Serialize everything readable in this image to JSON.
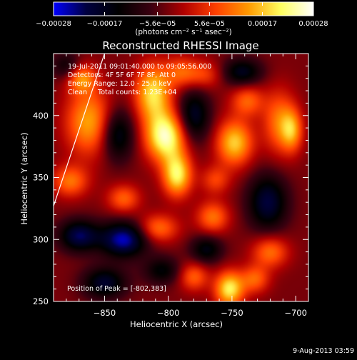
{
  "chart_data": {
    "type": "heatmap",
    "title": "Reconstructed RHESSI Image",
    "xlabel": "Heliocentric X (arcsec)",
    "ylabel": "Heliocentric Y (arcsec)",
    "xlim": [
      -890,
      -690
    ],
    "ylim": [
      250,
      450
    ],
    "x_ticks": [
      -850,
      -800,
      -750,
      -700
    ],
    "x_tick_labels": [
      "−850",
      "−800",
      "−750",
      "−700"
    ],
    "y_ticks": [
      250,
      300,
      350,
      400
    ],
    "y_tick_labels": [
      "250",
      "300",
      "350",
      "400"
    ],
    "colorbar": {
      "min": -0.00028,
      "max": 0.00028,
      "ticks": [
        -0.00028,
        -0.00017,
        -5.6e-05,
        5.6e-05,
        0.00017,
        0.00028
      ],
      "tick_labels": [
        "−0.00028",
        "−0.00017",
        "−5.6e−05",
        "5.6e−05",
        "0.00017",
        "0.00028"
      ],
      "unit_label": "(photons cm⁻² s⁻¹ asec⁻²)",
      "colors": [
        "#0000ff",
        "#000040",
        "#000000",
        "#3a0010",
        "#b00000",
        "#ff4000",
        "#ff9a00",
        "#ffff60",
        "#ffffff"
      ]
    },
    "annotations": [
      "19-Jul-2011 09:01:40.000 to 09:05:56.000",
      "Detectors: 4F 5F 6F 7F 8F, Att 0",
      "Energy Range: 12.0 - 25.0 keV",
      "Clean     Total counts: 1.23E+04"
    ],
    "peak_label": "Position of Peak = [-802,383]",
    "peak": [
      -802,
      383
    ],
    "limb_line": [
      [
        -890,
        327
      ],
      [
        -850,
        450
      ]
    ],
    "blobs": [
      {
        "x": -802,
        "y": 383,
        "v": 1.0,
        "sx": 11,
        "sy": 14
      },
      {
        "x": -793,
        "y": 352,
        "v": 0.85,
        "sx": 8,
        "sy": 12
      },
      {
        "x": -812,
        "y": 418,
        "v": 0.8,
        "sx": 10,
        "sy": 16
      },
      {
        "x": -790,
        "y": 435,
        "v": 0.4,
        "sx": 9,
        "sy": 9
      },
      {
        "x": -862,
        "y": 395,
        "v": 0.65,
        "sx": 13,
        "sy": 19
      },
      {
        "x": -868,
        "y": 430,
        "v": 0.55,
        "sx": 8,
        "sy": 8
      },
      {
        "x": -877,
        "y": 347,
        "v": 0.5,
        "sx": 10,
        "sy": 9
      },
      {
        "x": -835,
        "y": 333,
        "v": 0.45,
        "sx": 9,
        "sy": 8
      },
      {
        "x": -808,
        "y": 309,
        "v": 0.5,
        "sx": 11,
        "sy": 8
      },
      {
        "x": -765,
        "y": 318,
        "v": 0.5,
        "sx": 9,
        "sy": 9
      },
      {
        "x": -763,
        "y": 348,
        "v": 0.35,
        "sx": 8,
        "sy": 8
      },
      {
        "x": -748,
        "y": 378,
        "v": 0.75,
        "sx": 10,
        "sy": 13
      },
      {
        "x": -738,
        "y": 412,
        "v": 0.45,
        "sx": 9,
        "sy": 9
      },
      {
        "x": -713,
        "y": 395,
        "v": 0.5,
        "sx": 9,
        "sy": 18
      },
      {
        "x": -703,
        "y": 388,
        "v": 0.55,
        "sx": 6,
        "sy": 12
      },
      {
        "x": -752,
        "y": 260,
        "v": 0.85,
        "sx": 8,
        "sy": 10
      },
      {
        "x": -780,
        "y": 270,
        "v": 0.45,
        "sx": 8,
        "sy": 8
      },
      {
        "x": -720,
        "y": 290,
        "v": 0.5,
        "sx": 10,
        "sy": 9
      },
      {
        "x": -732,
        "y": 268,
        "v": 0.45,
        "sx": 8,
        "sy": 8
      },
      {
        "x": -772,
        "y": 433,
        "v": 0.35,
        "sx": 10,
        "sy": 8
      },
      {
        "x": -840,
        "y": 385,
        "v": -0.55,
        "sx": 9,
        "sy": 15
      },
      {
        "x": -835,
        "y": 300,
        "v": -0.8,
        "sx": 13,
        "sy": 10
      },
      {
        "x": -870,
        "y": 303,
        "v": -0.65,
        "sx": 11,
        "sy": 9
      },
      {
        "x": -780,
        "y": 400,
        "v": -0.55,
        "sx": 9,
        "sy": 15
      },
      {
        "x": -722,
        "y": 330,
        "v": -0.6,
        "sx": 11,
        "sy": 16
      },
      {
        "x": -770,
        "y": 292,
        "v": -0.45,
        "sx": 9,
        "sy": 8
      },
      {
        "x": -850,
        "y": 265,
        "v": -0.55,
        "sx": 12,
        "sy": 9
      },
      {
        "x": -742,
        "y": 435,
        "v": -0.5,
        "sx": 11,
        "sy": 8
      },
      {
        "x": -805,
        "y": 275,
        "v": -0.4,
        "sx": 10,
        "sy": 8
      },
      {
        "x": -880,
        "y": 440,
        "v": -0.35,
        "sx": 8,
        "sy": 8
      }
    ]
  },
  "footer": {
    "date": "9-Aug-2013 03:59"
  }
}
